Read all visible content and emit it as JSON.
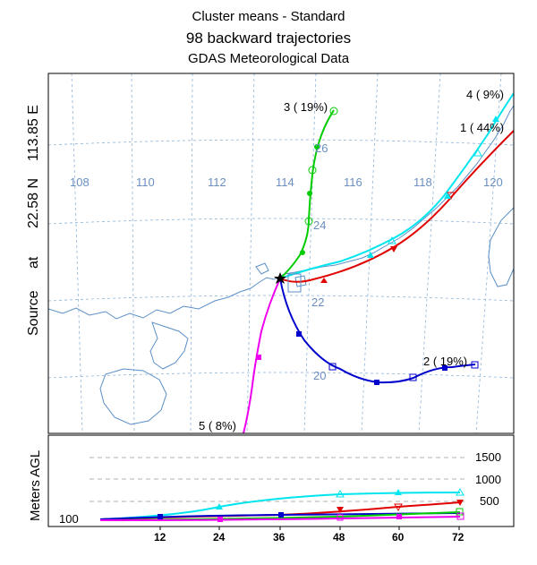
{
  "header": {
    "title": "Cluster means - Standard",
    "subtitle": "98 backward trajectories",
    "data_source": "GDAS Meteorological Data"
  },
  "source_label": {
    "word_source": "Source",
    "word_at": "at",
    "lat": "22.58 N",
    "lon": "113.85 E"
  },
  "map": {
    "lon_labels": [
      "108",
      "110",
      "112",
      "114",
      "116",
      "118",
      "120"
    ],
    "lat_labels": [
      "26",
      "24",
      "22",
      "20"
    ],
    "grid_color": "#8fb3d9",
    "coast_color": "#5b8fc7"
  },
  "clusters": [
    {
      "id": "1",
      "label": "1 ( 44%)",
      "color": "#e00000",
      "marker": "triangle-down"
    },
    {
      "id": "2",
      "label": "2 ( 19%)",
      "color": "#0000cc",
      "marker": "square"
    },
    {
      "id": "3",
      "label": "3 ( 19%)",
      "color": "#00cc00",
      "marker": "circle"
    },
    {
      "id": "4",
      "label": "4 (  9%)",
      "color": "#00e5ee",
      "marker": "triangle-up"
    },
    {
      "id": "5",
      "label": "5 (  8%)",
      "color": "#ee00ee",
      "marker": "square"
    }
  ],
  "height_panel": {
    "ylabel": "Meters AGL",
    "baseline_label": "100",
    "ref_labels": [
      "1500",
      "1000",
      "500"
    ],
    "x_ticks": [
      "12",
      "24",
      "36",
      "48",
      "60",
      "72"
    ]
  }
}
